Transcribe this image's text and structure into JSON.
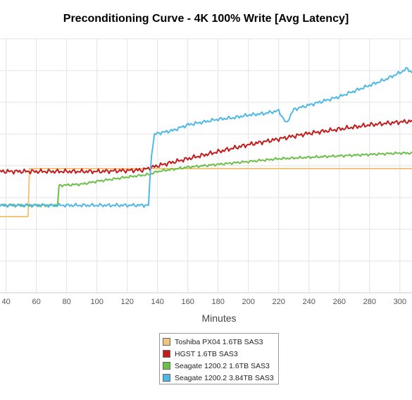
{
  "chart_data": {
    "type": "line",
    "title": "Preconditioning Curve - 4K 100% Write [Avg Latency]",
    "xlabel": "Minutes",
    "ylabel": "",
    "x_ticks": [
      40,
      60,
      80,
      100,
      120,
      140,
      160,
      180,
      200,
      220,
      240,
      260,
      280,
      300
    ],
    "xlim": [
      36,
      308
    ],
    "ylim": [
      0,
      9
    ],
    "y_grid_count": 8,
    "grid": true,
    "legend_position": "bottom-center",
    "series": [
      {
        "name": "Toshiba PX04 1.6TB SAS3",
        "color": "#f3c47e",
        "points": [
          [
            36,
            2.7
          ],
          [
            54.5,
            2.7
          ],
          [
            55.5,
            4.4
          ],
          [
            308,
            4.4
          ]
        ]
      },
      {
        "name": "HGST 1.6TB SAS3",
        "color": "#c21d1d",
        "points": [
          [
            36,
            4.3
          ],
          [
            100,
            4.3
          ],
          [
            130,
            4.35
          ],
          [
            140,
            4.5
          ],
          [
            160,
            4.75
          ],
          [
            180,
            5.0
          ],
          [
            200,
            5.25
          ],
          [
            220,
            5.45
          ],
          [
            240,
            5.65
          ],
          [
            260,
            5.8
          ],
          [
            280,
            5.95
          ],
          [
            300,
            6.05
          ],
          [
            308,
            6.08
          ]
        ]
      },
      {
        "name": "Seagate 1200.2 1.6TB SAS3",
        "color": "#6cc04a",
        "points": [
          [
            36,
            3.1
          ],
          [
            74,
            3.1
          ],
          [
            75,
            3.8
          ],
          [
            90,
            3.85
          ],
          [
            100,
            3.95
          ],
          [
            120,
            4.1
          ],
          [
            135,
            4.2
          ],
          [
            140,
            4.3
          ],
          [
            160,
            4.45
          ],
          [
            180,
            4.55
          ],
          [
            200,
            4.65
          ],
          [
            220,
            4.75
          ],
          [
            240,
            4.8
          ],
          [
            260,
            4.85
          ],
          [
            280,
            4.9
          ],
          [
            300,
            4.95
          ],
          [
            308,
            4.95
          ]
        ]
      },
      {
        "name": "Seagate 1200.2 3.84TB SAS3",
        "color": "#4fb9e6",
        "points": [
          [
            36,
            3.1
          ],
          [
            134,
            3.1
          ],
          [
            136,
            4.9
          ],
          [
            138,
            5.6
          ],
          [
            140,
            5.65
          ],
          [
            150,
            5.75
          ],
          [
            160,
            5.95
          ],
          [
            170,
            6.05
          ],
          [
            180,
            6.15
          ],
          [
            190,
            6.2
          ],
          [
            200,
            6.3
          ],
          [
            210,
            6.35
          ],
          [
            220,
            6.45
          ],
          [
            225,
            6.0
          ],
          [
            230,
            6.5
          ],
          [
            240,
            6.65
          ],
          [
            250,
            6.8
          ],
          [
            260,
            6.95
          ],
          [
            270,
            7.15
          ],
          [
            280,
            7.35
          ],
          [
            290,
            7.55
          ],
          [
            300,
            7.8
          ],
          [
            305,
            7.95
          ],
          [
            308,
            7.8
          ]
        ]
      }
    ]
  }
}
